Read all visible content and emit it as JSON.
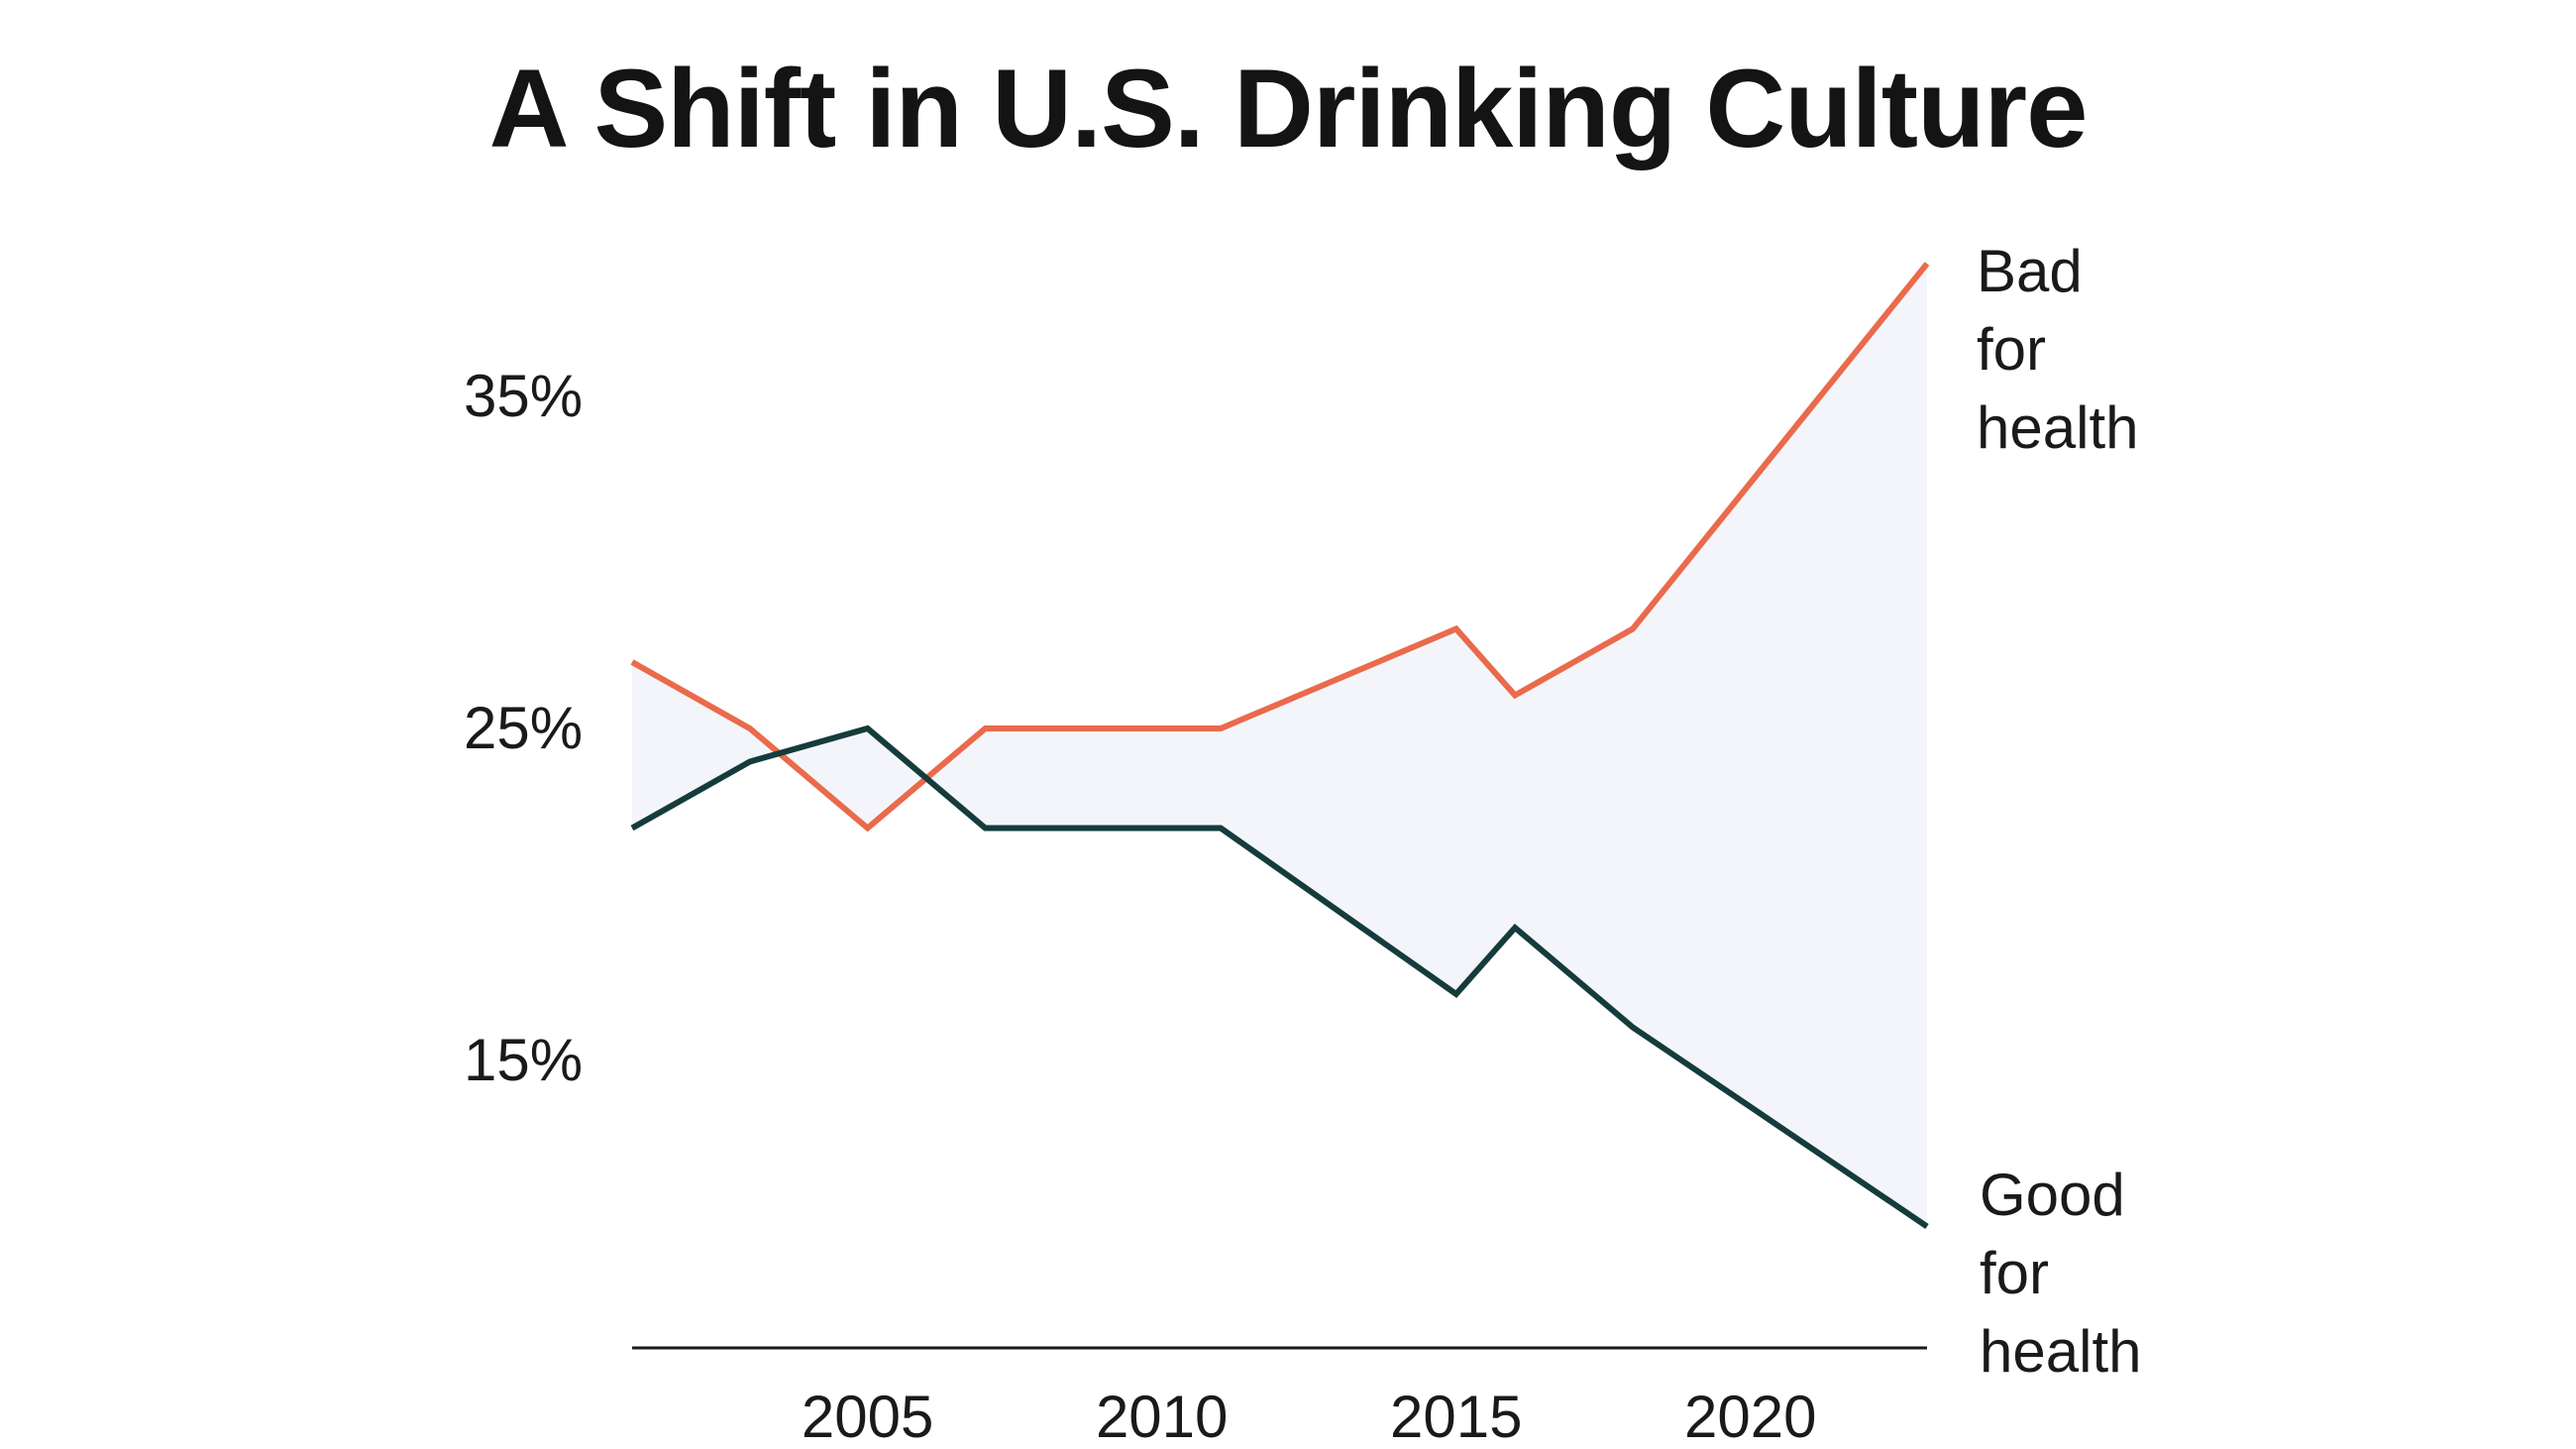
{
  "chart_data": {
    "type": "line",
    "title": "A Shift in U.S. Drinking Culture",
    "xlabel": "",
    "ylabel": "",
    "xlim": [
      2001,
      2023
    ],
    "ylim": [
      10.5,
      41
    ],
    "x_ticks": [
      2005,
      2010,
      2015,
      2020
    ],
    "y_ticks": [
      {
        "value": 15,
        "label": "15%"
      },
      {
        "value": 25,
        "label": "25%"
      },
      {
        "value": 35,
        "label": "35%"
      }
    ],
    "grid": false,
    "shaded_between_series": true,
    "series": [
      {
        "name": "Bad for health",
        "label_lines": [
          "Bad",
          "for",
          "health"
        ],
        "color": "#ea6a4c",
        "x": [
          2001,
          2003,
          2005,
          2007,
          2011,
          2015,
          2016,
          2018,
          2023
        ],
        "values": [
          27,
          25,
          22,
          25,
          25,
          28,
          26,
          28,
          39
        ]
      },
      {
        "name": "Good for health",
        "label_lines": [
          "Good",
          "for",
          "health"
        ],
        "color": "#153c3c",
        "x": [
          2001,
          2003,
          2005,
          2007,
          2011,
          2015,
          2016,
          2018,
          2023
        ],
        "values": [
          22,
          24,
          25,
          22,
          22,
          17,
          19,
          16,
          10
        ]
      }
    ],
    "fill_color": "#f4f5fa",
    "axis_color": "#1a1a1a"
  }
}
